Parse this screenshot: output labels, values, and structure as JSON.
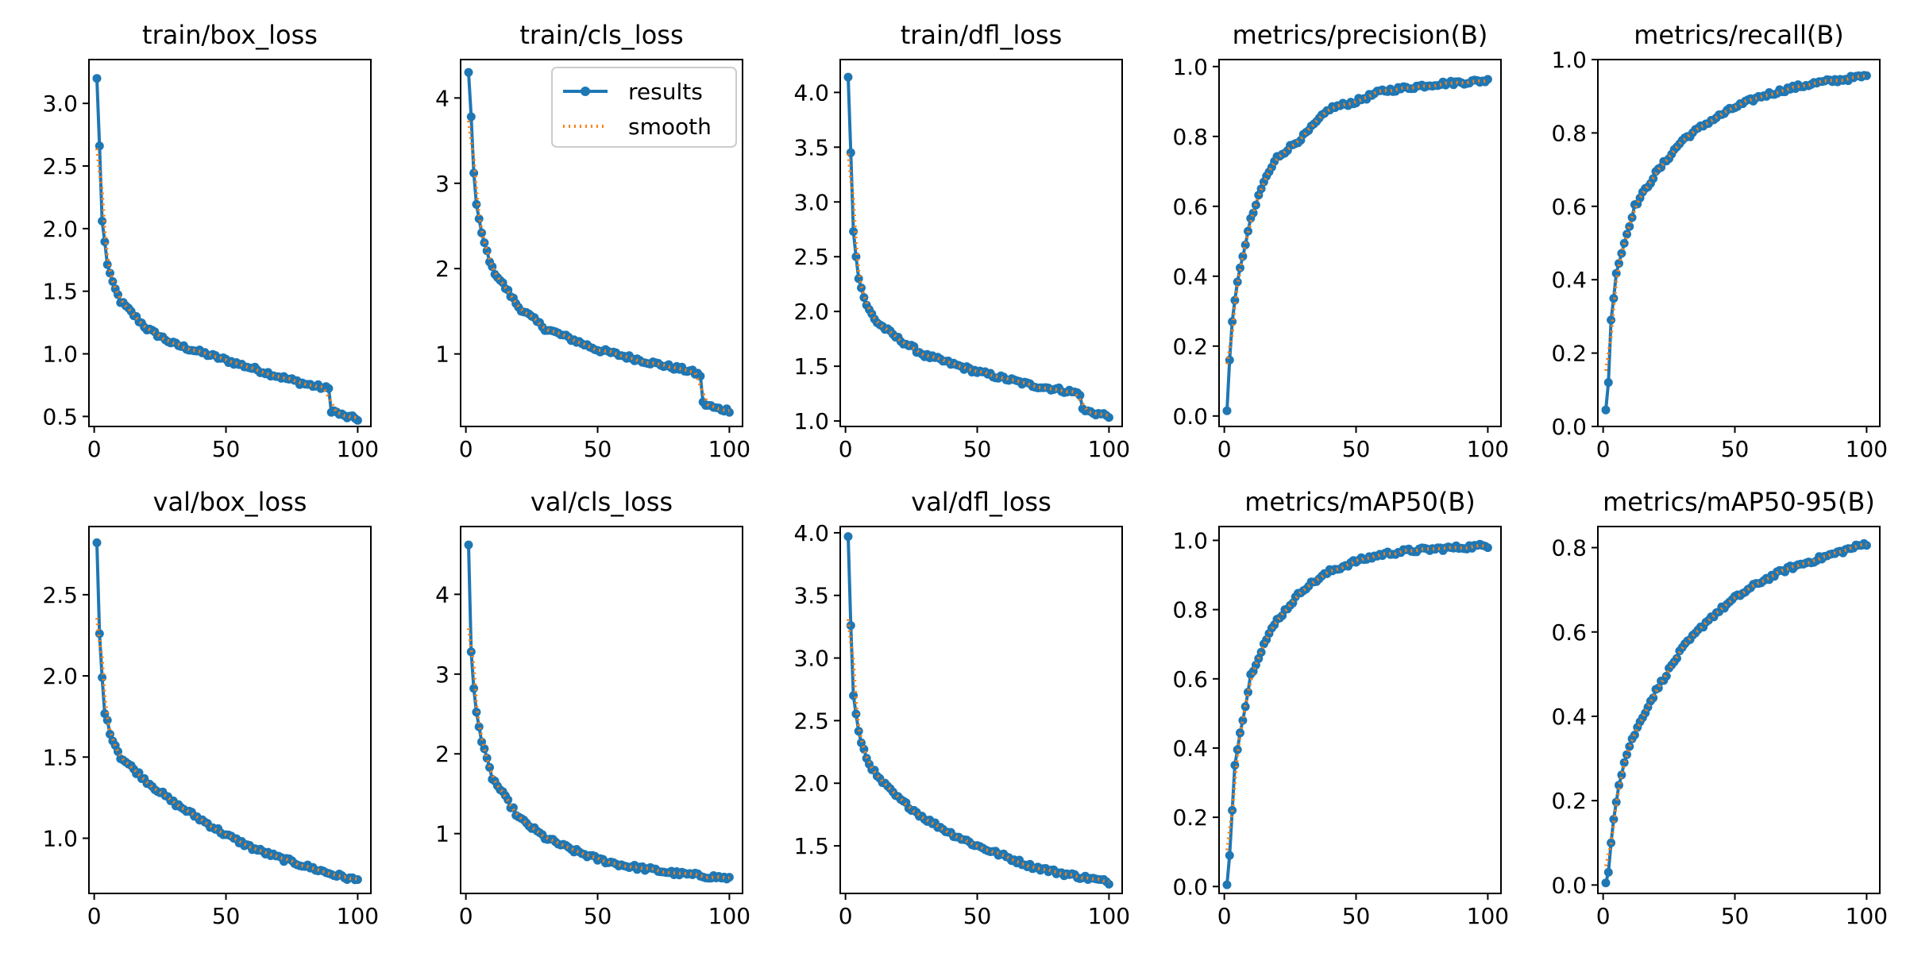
{
  "chart_data": [
    {
      "type": "line",
      "title": "train/box_loss",
      "xlim": [
        -2,
        105
      ],
      "ylim": [
        0.42,
        3.35
      ],
      "xticks": [
        0,
        50,
        100
      ],
      "yticks": [
        0.5,
        1.0,
        1.5,
        2.0,
        2.5,
        3.0
      ],
      "xtick_labels": [
        "0",
        "50",
        "100"
      ],
      "ytick_labels": [
        "0.5",
        "1.0",
        "1.5",
        "2.0",
        "2.5",
        "3.0"
      ],
      "curve": {
        "start": 3.2,
        "p": [
          [
            2,
            2.66
          ],
          [
            3,
            2.06
          ],
          [
            5,
            1.72
          ],
          [
            7,
            1.56
          ],
          [
            10,
            1.42
          ],
          [
            20,
            1.2
          ],
          [
            30,
            1.08
          ],
          [
            50,
            0.95
          ],
          [
            70,
            0.82
          ],
          [
            80,
            0.76
          ],
          [
            89,
            0.72
          ],
          [
            90,
            0.55
          ],
          [
            95,
            0.5
          ],
          [
            100,
            0.48
          ]
        ]
      },
      "legend": false
    },
    {
      "type": "line",
      "title": "train/cls_loss",
      "xlim": [
        -2,
        105
      ],
      "ylim": [
        0.15,
        4.45
      ],
      "xticks": [
        0,
        50,
        100
      ],
      "yticks": [
        1,
        2,
        3,
        4
      ],
      "xtick_labels": [
        "0",
        "50",
        "100"
      ],
      "ytick_labels": [
        "1",
        "2",
        "3",
        "4"
      ],
      "curve": {
        "start": 4.3,
        "p": [
          [
            2,
            3.78
          ],
          [
            3,
            3.12
          ],
          [
            4,
            2.75
          ],
          [
            6,
            2.4
          ],
          [
            10,
            2.0
          ],
          [
            20,
            1.55
          ],
          [
            30,
            1.3
          ],
          [
            50,
            1.05
          ],
          [
            70,
            0.9
          ],
          [
            85,
            0.8
          ],
          [
            89,
            0.75
          ],
          [
            90,
            0.42
          ],
          [
            95,
            0.36
          ],
          [
            100,
            0.34
          ]
        ]
      },
      "legend": true,
      "legend_entries": [
        "results",
        "smooth"
      ]
    },
    {
      "type": "line",
      "title": "train/dfl_loss",
      "xlim": [
        -2,
        105
      ],
      "ylim": [
        0.95,
        4.3
      ],
      "xticks": [
        0,
        50,
        100
      ],
      "yticks": [
        1.0,
        1.5,
        2.0,
        2.5,
        3.0,
        3.5,
        4.0
      ],
      "xtick_labels": [
        "0",
        "50",
        "100"
      ],
      "ytick_labels": [
        "1.0",
        "1.5",
        "2.0",
        "2.5",
        "3.0",
        "3.5",
        "4.0"
      ],
      "curve": {
        "start": 4.14,
        "p": [
          [
            2,
            3.45
          ],
          [
            3,
            2.73
          ],
          [
            5,
            2.3
          ],
          [
            8,
            2.05
          ],
          [
            12,
            1.9
          ],
          [
            20,
            1.75
          ],
          [
            30,
            1.6
          ],
          [
            50,
            1.45
          ],
          [
            70,
            1.33
          ],
          [
            85,
            1.27
          ],
          [
            89,
            1.25
          ],
          [
            90,
            1.1
          ],
          [
            95,
            1.07
          ],
          [
            100,
            1.05
          ]
        ]
      },
      "legend": false
    },
    {
      "type": "line",
      "title": "metrics/precision(B)",
      "xlim": [
        -2,
        105
      ],
      "ylim": [
        -0.03,
        1.02
      ],
      "xticks": [
        0,
        50,
        100
      ],
      "yticks": [
        0.0,
        0.2,
        0.4,
        0.6,
        0.8,
        1.0
      ],
      "xtick_labels": [
        "0",
        "50",
        "100"
      ],
      "ytick_labels": [
        "0.0",
        "0.2",
        "0.4",
        "0.6",
        "0.8",
        "1.0"
      ],
      "curve": {
        "start": 0.015,
        "p": [
          [
            2,
            0.16
          ],
          [
            3,
            0.27
          ],
          [
            5,
            0.38
          ],
          [
            7,
            0.46
          ],
          [
            10,
            0.56
          ],
          [
            15,
            0.67
          ],
          [
            20,
            0.74
          ],
          [
            30,
            0.8
          ],
          [
            40,
            0.88
          ],
          [
            50,
            0.9
          ],
          [
            60,
            0.93
          ],
          [
            70,
            0.94
          ],
          [
            80,
            0.95
          ],
          [
            100,
            0.96
          ]
        ]
      },
      "legend": false
    },
    {
      "type": "line",
      "title": "metrics/recall(B)",
      "xlim": [
        -2,
        105
      ],
      "ylim": [
        0.0,
        1.0
      ],
      "xticks": [
        0,
        50,
        100
      ],
      "yticks": [
        0.0,
        0.2,
        0.4,
        0.6,
        0.8,
        1.0
      ],
      "xtick_labels": [
        "0",
        "50",
        "100"
      ],
      "ytick_labels": [
        "0.0",
        "0.2",
        "0.4",
        "0.6",
        "0.8",
        "1.0"
      ],
      "curve": {
        "start": 0.045,
        "p": [
          [
            2,
            0.12
          ],
          [
            3,
            0.29
          ],
          [
            5,
            0.42
          ],
          [
            8,
            0.5
          ],
          [
            12,
            0.6
          ],
          [
            20,
            0.69
          ],
          [
            30,
            0.78
          ],
          [
            40,
            0.83
          ],
          [
            50,
            0.87
          ],
          [
            60,
            0.9
          ],
          [
            70,
            0.92
          ],
          [
            80,
            0.935
          ],
          [
            100,
            0.955
          ]
        ]
      },
      "legend": false
    },
    {
      "type": "line",
      "title": "val/box_loss",
      "xlim": [
        -2,
        105
      ],
      "ylim": [
        0.66,
        2.92
      ],
      "xticks": [
        0,
        50,
        100
      ],
      "yticks": [
        1.0,
        1.5,
        2.0,
        2.5
      ],
      "xtick_labels": [
        "0",
        "50",
        "100"
      ],
      "ytick_labels": [
        "1.0",
        "1.5",
        "2.0",
        "2.5"
      ],
      "curve": {
        "start": 2.82,
        "p": [
          [
            2,
            2.26
          ],
          [
            3,
            1.99
          ],
          [
            4,
            1.78
          ],
          [
            6,
            1.65
          ],
          [
            10,
            1.5
          ],
          [
            20,
            1.35
          ],
          [
            30,
            1.22
          ],
          [
            40,
            1.12
          ],
          [
            50,
            1.02
          ],
          [
            60,
            0.94
          ],
          [
            70,
            0.88
          ],
          [
            80,
            0.83
          ],
          [
            90,
            0.78
          ],
          [
            100,
            0.74
          ]
        ]
      },
      "legend": false
    },
    {
      "type": "line",
      "title": "val/cls_loss",
      "xlim": [
        -2,
        105
      ],
      "ylim": [
        0.25,
        4.85
      ],
      "xticks": [
        0,
        50,
        100
      ],
      "yticks": [
        1,
        2,
        3,
        4
      ],
      "xtick_labels": [
        "0",
        "50",
        "100"
      ],
      "ytick_labels": [
        "1",
        "2",
        "3",
        "4"
      ],
      "curve": {
        "start": 4.62,
        "p": [
          [
            2,
            3.28
          ],
          [
            3,
            2.82
          ],
          [
            4,
            2.55
          ],
          [
            6,
            2.15
          ],
          [
            10,
            1.7
          ],
          [
            20,
            1.2
          ],
          [
            30,
            0.95
          ],
          [
            40,
            0.8
          ],
          [
            50,
            0.68
          ],
          [
            60,
            0.6
          ],
          [
            70,
            0.55
          ],
          [
            80,
            0.5
          ],
          [
            90,
            0.47
          ],
          [
            100,
            0.44
          ]
        ]
      },
      "legend": false
    },
    {
      "type": "line",
      "title": "val/dfl_loss",
      "xlim": [
        -2,
        105
      ],
      "ylim": [
        1.12,
        4.05
      ],
      "xticks": [
        0,
        50,
        100
      ],
      "yticks": [
        1.5,
        2.0,
        2.5,
        3.0,
        3.5,
        4.0
      ],
      "xtick_labels": [
        "0",
        "50",
        "100"
      ],
      "ytick_labels": [
        "1.5",
        "2.0",
        "2.5",
        "3.0",
        "3.5",
        "4.0"
      ],
      "curve": {
        "start": 3.97,
        "p": [
          [
            2,
            3.26
          ],
          [
            3,
            2.7
          ],
          [
            5,
            2.4
          ],
          [
            8,
            2.2
          ],
          [
            12,
            2.05
          ],
          [
            20,
            1.88
          ],
          [
            30,
            1.72
          ],
          [
            40,
            1.6
          ],
          [
            50,
            1.5
          ],
          [
            60,
            1.42
          ],
          [
            70,
            1.34
          ],
          [
            80,
            1.29
          ],
          [
            90,
            1.25
          ],
          [
            100,
            1.21
          ]
        ]
      },
      "legend": false
    },
    {
      "type": "line",
      "title": "metrics/mAP50(B)",
      "xlim": [
        -2,
        105
      ],
      "ylim": [
        -0.02,
        1.04
      ],
      "xticks": [
        0,
        50,
        100
      ],
      "yticks": [
        0.0,
        0.2,
        0.4,
        0.6,
        0.8,
        1.0
      ],
      "xtick_labels": [
        "0",
        "50",
        "100"
      ],
      "ytick_labels": [
        "0.0",
        "0.2",
        "0.4",
        "0.6",
        "0.8",
        "1.0"
      ],
      "curve": {
        "start": 0.005,
        "p": [
          [
            2,
            0.09
          ],
          [
            3,
            0.22
          ],
          [
            4,
            0.35
          ],
          [
            6,
            0.45
          ],
          [
            8,
            0.52
          ],
          [
            10,
            0.61
          ],
          [
            15,
            0.7
          ],
          [
            20,
            0.77
          ],
          [
            30,
            0.86
          ],
          [
            40,
            0.91
          ],
          [
            50,
            0.94
          ],
          [
            60,
            0.96
          ],
          [
            70,
            0.97
          ],
          [
            80,
            0.975
          ],
          [
            100,
            0.985
          ]
        ]
      },
      "legend": false
    },
    {
      "type": "line",
      "title": "metrics/mAP50-95(B)",
      "xlim": [
        -2,
        105
      ],
      "ylim": [
        -0.02,
        0.85
      ],
      "xticks": [
        0,
        50,
        100
      ],
      "yticks": [
        0.0,
        0.2,
        0.4,
        0.6,
        0.8
      ],
      "xtick_labels": [
        "0",
        "50",
        "100"
      ],
      "ytick_labels": [
        "0.0",
        "0.2",
        "0.4",
        "0.6",
        "0.8"
      ],
      "curve": {
        "start": 0.005,
        "p": [
          [
            2,
            0.03
          ],
          [
            3,
            0.1
          ],
          [
            4,
            0.16
          ],
          [
            6,
            0.24
          ],
          [
            8,
            0.29
          ],
          [
            10,
            0.33
          ],
          [
            15,
            0.4
          ],
          [
            20,
            0.46
          ],
          [
            30,
            0.56
          ],
          [
            40,
            0.63
          ],
          [
            50,
            0.68
          ],
          [
            60,
            0.72
          ],
          [
            70,
            0.75
          ],
          [
            80,
            0.77
          ],
          [
            90,
            0.79
          ],
          [
            100,
            0.81
          ]
        ]
      },
      "legend": false
    }
  ],
  "colors": {
    "results": "#1f77b4",
    "smooth": "#ff7f0e",
    "axes": "#000000"
  }
}
